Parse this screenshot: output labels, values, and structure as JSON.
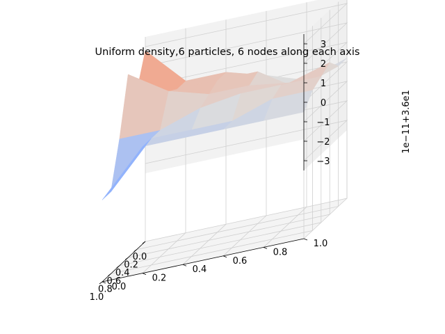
{
  "chart_data": {
    "type": "surface3d",
    "title": "Uniform density,6 particles, 6 nodes along each axis",
    "colormap": "coolwarm",
    "colors": {
      "pane_back": "#efefef",
      "pane_side": "#f2f2f2",
      "pane_floor": "#f4f4f4",
      "grid": "#cfcfcf",
      "axis": "#000000",
      "text": "#000000"
    },
    "x_ticks": [
      "0.0",
      "0.2",
      "0.4",
      "0.6",
      "0.8",
      "1.0"
    ],
    "y_ticks": [
      "0.0",
      "0.2",
      "0.4",
      "0.6",
      "0.8",
      "1.0"
    ],
    "z_ticks": [
      "−3",
      "−2",
      "−1",
      "0",
      "1",
      "2",
      "3"
    ],
    "z_offset_label": "1e−11+3.6e1",
    "zlim": [
      -3.5,
      3.5
    ],
    "x_grid": [
      0.0,
      0.2,
      0.4,
      0.6,
      0.8,
      1.0
    ],
    "y_grid": [
      0.0,
      0.2,
      0.4,
      0.6,
      0.8,
      1.0
    ],
    "z_offset_values": [
      [
        2.8,
        0.8,
        0.8,
        0.2,
        -0.5,
        0.2
      ],
      [
        1.1,
        0.8,
        0.8,
        0.8,
        -0.5,
        0.2
      ],
      [
        2.4,
        1.1,
        0.5,
        0.5,
        0.2,
        0.8
      ],
      [
        -0.5,
        -0.5,
        0.2,
        0.5,
        0.5,
        0.5
      ],
      [
        -2.8,
        -0.5,
        -0.5,
        -0.5,
        0.2,
        0.2
      ],
      [
        -2.8,
        -0.5,
        -0.5,
        -0.5,
        -0.5,
        -0.5
      ]
    ]
  }
}
